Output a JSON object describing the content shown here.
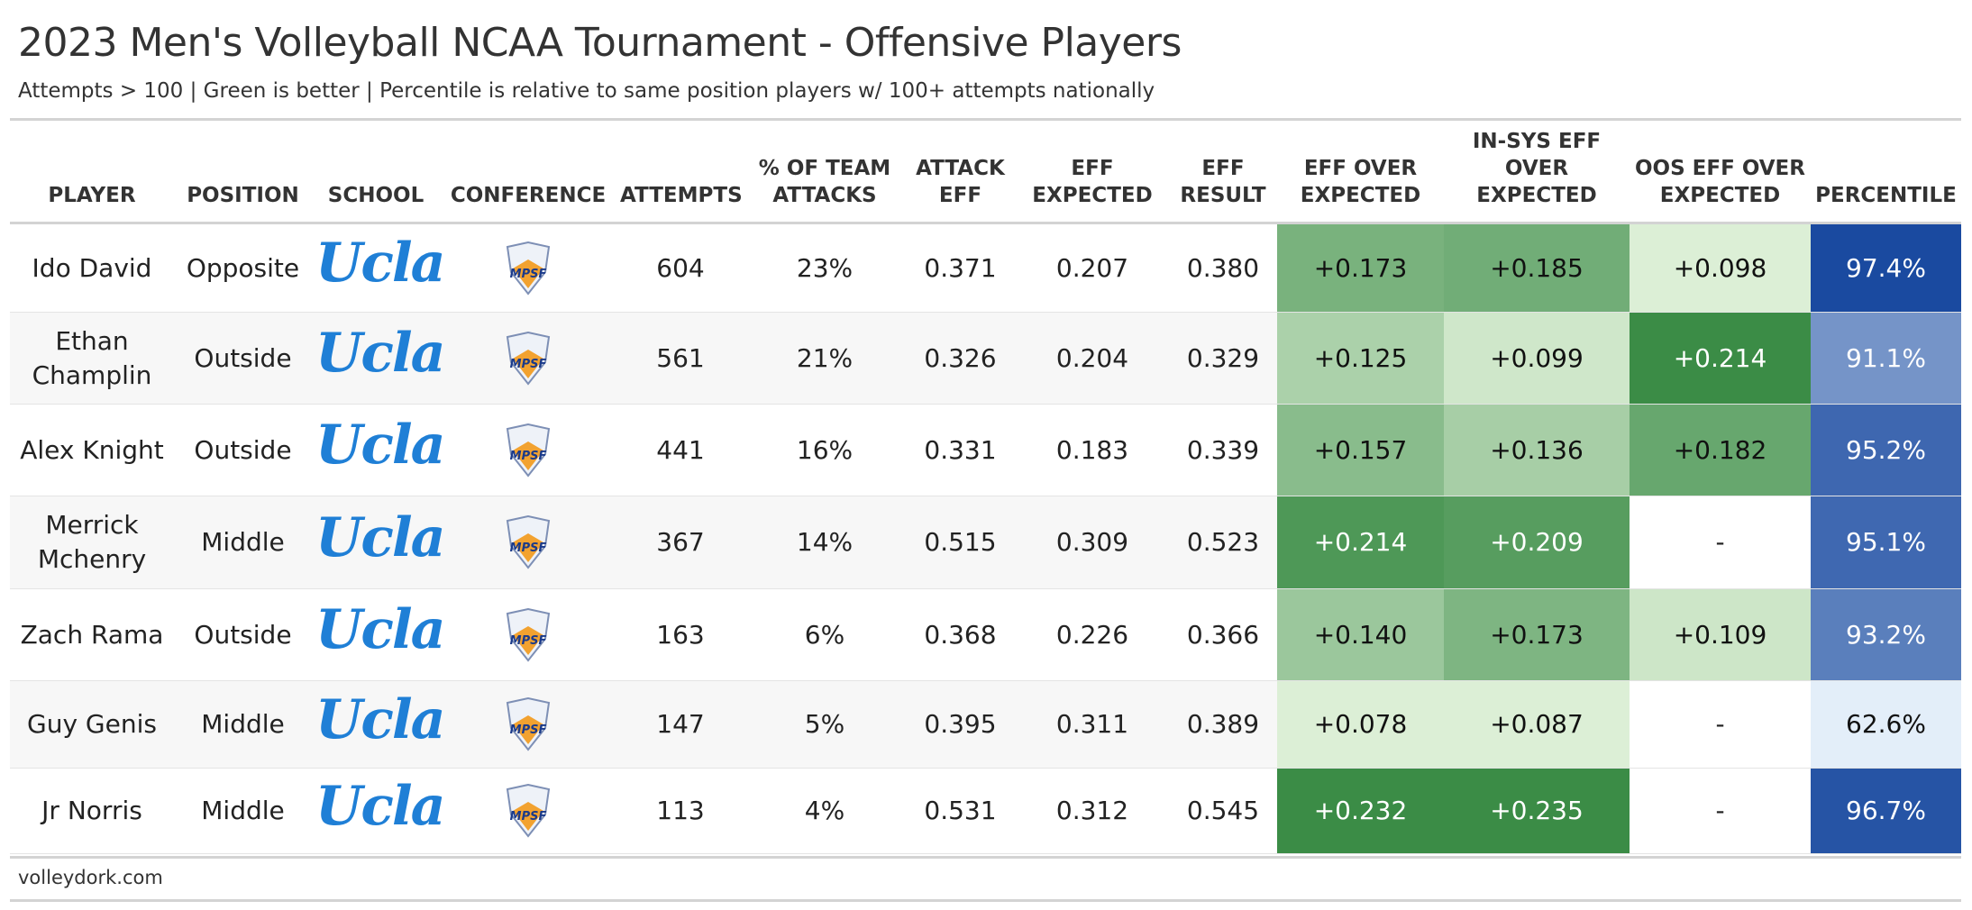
{
  "header": {
    "title": "2023 Men's Volleyball NCAA Tournament - Offensive Players",
    "subtitle": "Attempts > 100 | Green is better | Percentile is relative to same position players w/ 100+ attempts nationally"
  },
  "table": {
    "columns": [
      "PLAYER",
      "POSITION",
      "SCHOOL",
      "CONFERENCE",
      "ATTEMPTS",
      "% OF TEAM ATTACKS",
      "ATTACK EFF",
      "EFF EXPECTED",
      "EFF RESULT",
      "EFF OVER EXPECTED",
      "IN-SYS EFF OVER EXPECTED",
      "OOS EFF OVER EXPECTED",
      "PERCENTILE"
    ],
    "rows": [
      [
        "Ido David",
        "Opposite",
        "Ucla",
        "MPSF",
        "604",
        "23%",
        "0.371",
        "0.207",
        "0.380",
        "+0.173",
        "+0.185",
        "+0.098",
        "97.4%"
      ],
      [
        "Ethan Champlin",
        "Outside",
        "Ucla",
        "MPSF",
        "561",
        "21%",
        "0.326",
        "0.204",
        "0.329",
        "+0.125",
        "+0.099",
        "+0.214",
        "91.1%"
      ],
      [
        "Alex Knight",
        "Outside",
        "Ucla",
        "MPSF",
        "441",
        "16%",
        "0.331",
        "0.183",
        "0.339",
        "+0.157",
        "+0.136",
        "+0.182",
        "95.2%"
      ],
      [
        "Merrick Mchenry",
        "Middle",
        "Ucla",
        "MPSF",
        "367",
        "14%",
        "0.515",
        "0.309",
        "0.523",
        "+0.214",
        "+0.209",
        "-",
        "95.1%"
      ],
      [
        "Zach Rama",
        "Outside",
        "Ucla",
        "MPSF",
        "163",
        "6%",
        "0.368",
        "0.226",
        "0.366",
        "+0.140",
        "+0.173",
        "+0.109",
        "93.2%"
      ],
      [
        "Guy Genis",
        "Middle",
        "Ucla",
        "MPSF",
        "147",
        "5%",
        "0.395",
        "0.311",
        "0.389",
        "+0.078",
        "+0.087",
        "-",
        "62.6%"
      ],
      [
        "Jr Norris",
        "Middle",
        "Ucla",
        "MPSF",
        "113",
        "4%",
        "0.531",
        "0.312",
        "0.545",
        "+0.232",
        "+0.235",
        "-",
        "96.7%"
      ]
    ]
  },
  "footer": {
    "source": "volleydork.com"
  }
}
